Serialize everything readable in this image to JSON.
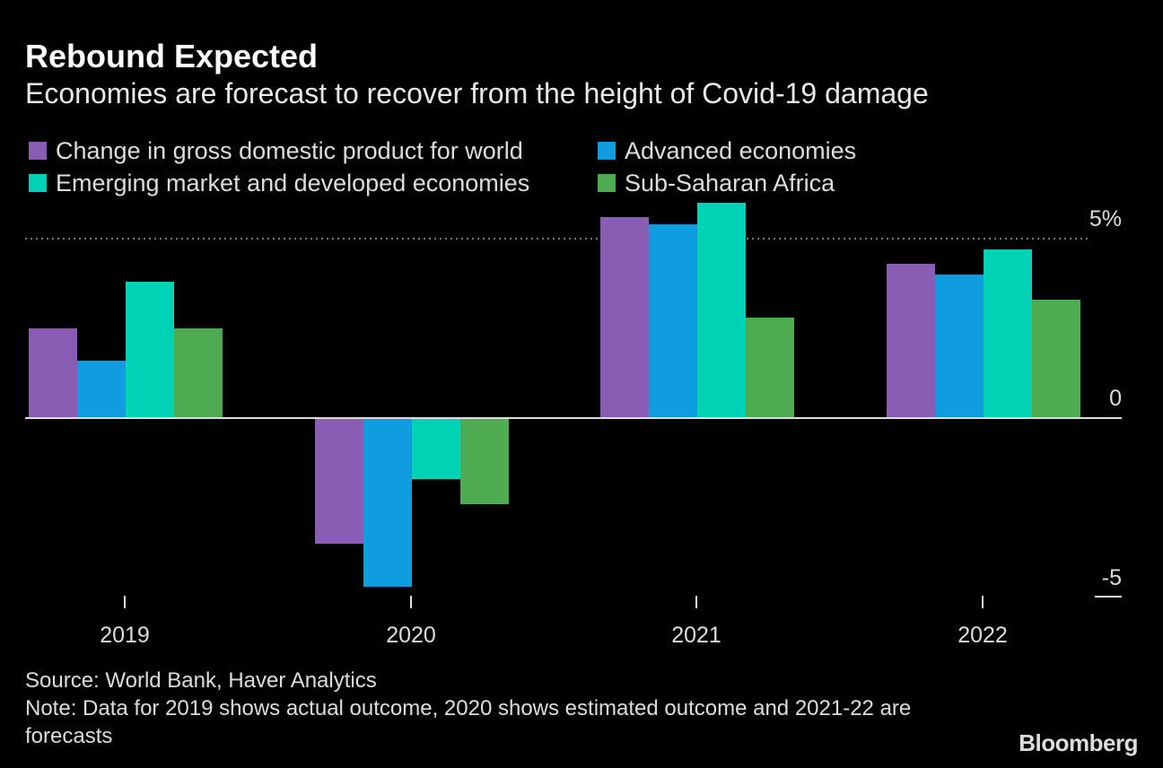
{
  "title": "Rebound Expected",
  "subtitle": "Economies are forecast to recover from the height of Covid-19 damage",
  "source": "Source: World Bank, Haver Analytics",
  "note": "Note: Data for 2019 shows actual outcome, 2020 shows estimated outcome and 2021-22 are forecasts",
  "logo": "Bloomberg",
  "chart_data": {
    "type": "bar",
    "title": "Rebound Expected",
    "categories": [
      "2019",
      "2020",
      "2021",
      "2022"
    ],
    "series": [
      {
        "name": "Change in gross domestic product for world",
        "color": "#8a5db4",
        "values": [
          2.5,
          -3.5,
          5.6,
          4.3
        ]
      },
      {
        "name": "Advanced economies",
        "color": "#109ddf",
        "values": [
          1.6,
          -4.7,
          5.4,
          4.0
        ]
      },
      {
        "name": "Emerging market and developed economies",
        "color": "#00d3b5",
        "values": [
          3.8,
          -1.7,
          6.0,
          4.7
        ]
      },
      {
        "name": "Sub-Saharan Africa",
        "color": "#4eab51",
        "values": [
          2.5,
          -2.4,
          2.8,
          3.3
        ]
      }
    ],
    "ylim": [
      -5,
      6.5
    ],
    "yticks": [
      {
        "value": 5,
        "label": "5%"
      },
      {
        "value": 0,
        "label": "0"
      },
      {
        "value": -5,
        "label": "-5"
      }
    ],
    "ylabel": "",
    "xlabel": "",
    "legend": "top-left"
  }
}
